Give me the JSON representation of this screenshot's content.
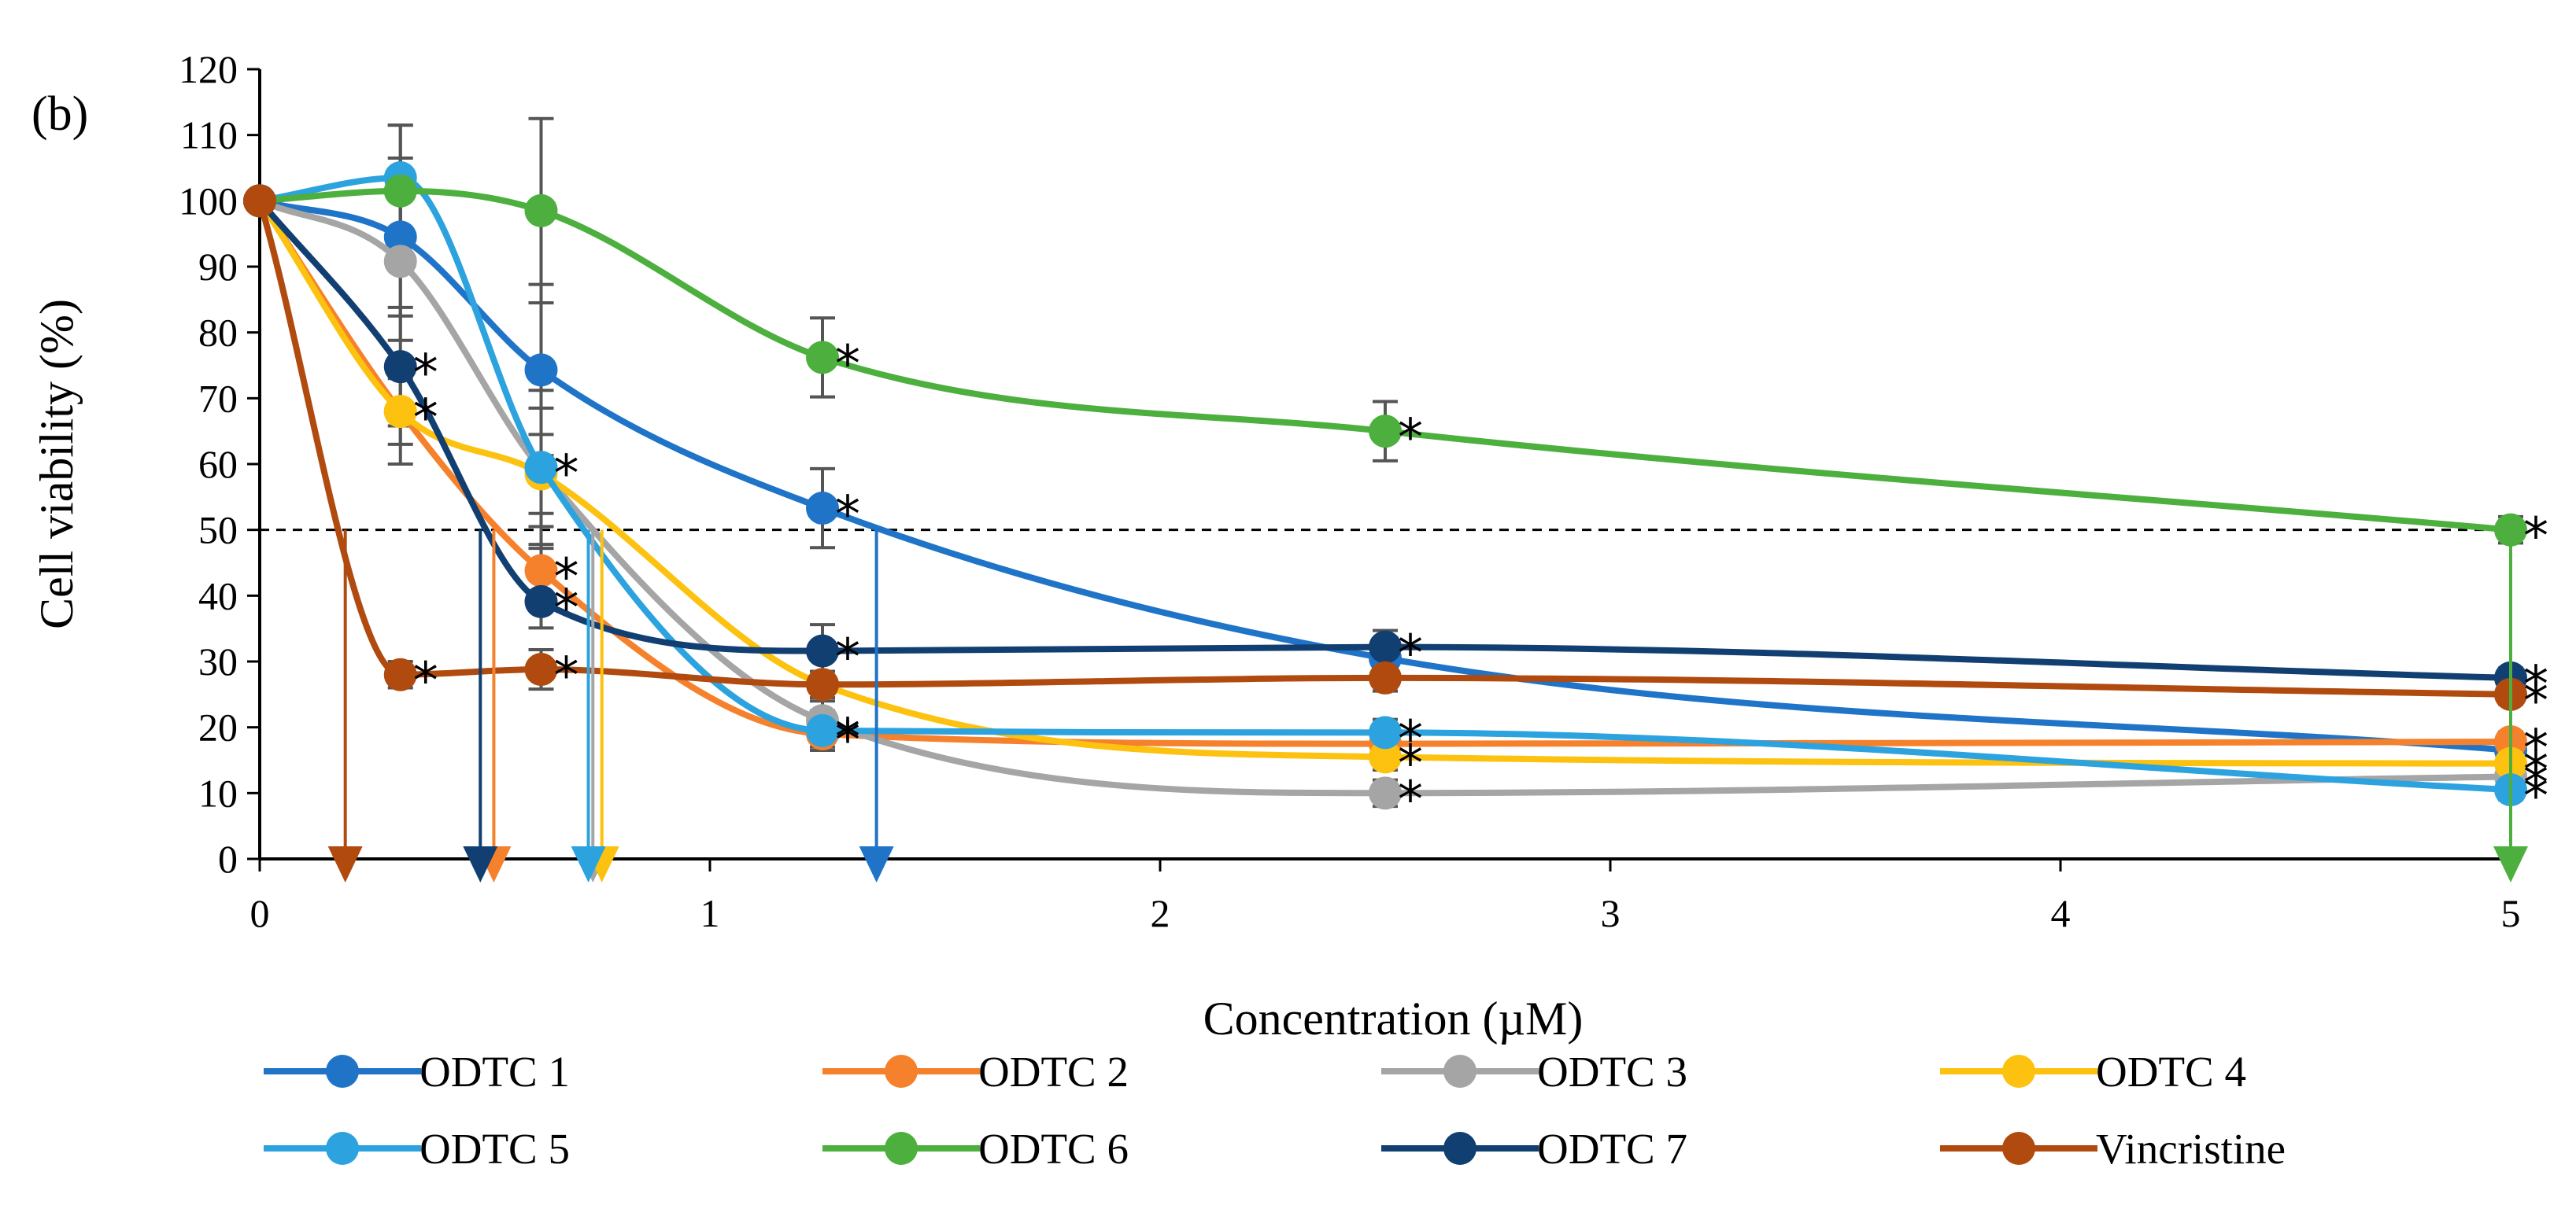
{
  "chart_data": {
    "type": "line",
    "panel_label": "(b)",
    "xlabel": "Concentration (µM)",
    "ylabel": "Cell viability (%)",
    "xlim": [
      0,
      5
    ],
    "ylim": [
      0,
      120
    ],
    "x_ticks": [
      "0",
      "1",
      "2",
      "3",
      "4",
      "5"
    ],
    "y_ticks": [
      "0",
      "10",
      "20",
      "30",
      "40",
      "50",
      "60",
      "70",
      "80",
      "90",
      "100",
      "110",
      "120"
    ],
    "reference_line": {
      "y": 50,
      "style": "dashed"
    },
    "x": [
      0,
      0.3125,
      0.625,
      1.25,
      2.5,
      5
    ],
    "series": [
      {
        "name": "ODTC 1",
        "color": "#1F74C8",
        "values": [
          100,
          94.5,
          74.3,
          53.3,
          30.5,
          16.5
        ],
        "errors": [
          0,
          12,
          13,
          6,
          2.5,
          1.5
        ],
        "significant": [
          false,
          false,
          false,
          true,
          false,
          false
        ],
        "ic50": 1.37
      },
      {
        "name": "ODTC 2",
        "color": "#F6812D",
        "values": [
          100,
          68,
          43.8,
          19,
          17.5,
          17.8
        ],
        "errors": [
          0,
          5,
          4,
          2,
          1.5,
          1.5
        ],
        "significant": [
          false,
          false,
          true,
          true,
          false,
          true
        ],
        "ic50": 0.52
      },
      {
        "name": "ODTC 3",
        "color": "#A5A5A5",
        "values": [
          100,
          90.8,
          59.2,
          21,
          10,
          12.5
        ],
        "errors": [
          0,
          12,
          12,
          3,
          2,
          1.5
        ],
        "significant": [
          false,
          false,
          false,
          false,
          true,
          true
        ],
        "ic50": 0.74
      },
      {
        "name": "ODTC 4",
        "color": "#FCC20F",
        "values": [
          100,
          68,
          58.5,
          26.5,
          15.5,
          14.5
        ],
        "errors": [
          0,
          8,
          6,
          4,
          2,
          1.5
        ],
        "significant": [
          false,
          true,
          false,
          false,
          true,
          true
        ],
        "ic50": 0.76
      },
      {
        "name": "ODTC 5",
        "color": "#2CA3DF",
        "values": [
          100,
          103.5,
          59.5,
          19.5,
          19.2,
          10.5
        ],
        "errors": [
          0,
          8,
          9,
          3,
          2,
          1.5
        ],
        "significant": [
          false,
          false,
          true,
          true,
          true,
          true
        ],
        "ic50": 0.73
      },
      {
        "name": "ODTC 6",
        "color": "#4CAF3E",
        "values": [
          100,
          101.5,
          98.5,
          76.2,
          65,
          50
        ],
        "errors": [
          0,
          10,
          14,
          6,
          4.5,
          2
        ],
        "significant": [
          false,
          false,
          false,
          true,
          true,
          true
        ],
        "ic50": 5.0
      },
      {
        "name": "ODTC 7",
        "color": "#123F72",
        "values": [
          100,
          74.8,
          39.1,
          31.6,
          32.2,
          27.5
        ],
        "errors": [
          0,
          9,
          4,
          4,
          2.5,
          1.5
        ],
        "significant": [
          false,
          true,
          true,
          true,
          true,
          true
        ],
        "ic50": 0.49
      },
      {
        "name": "Vincristine",
        "color": "#B04A0E",
        "values": [
          100,
          28,
          28.8,
          26.5,
          27.5,
          25
        ],
        "errors": [
          0,
          2,
          3,
          2,
          2,
          1.5
        ],
        "significant": [
          false,
          true,
          true,
          false,
          false,
          true
        ],
        "ic50": 0.19
      }
    ],
    "legend_position": "bottom"
  }
}
